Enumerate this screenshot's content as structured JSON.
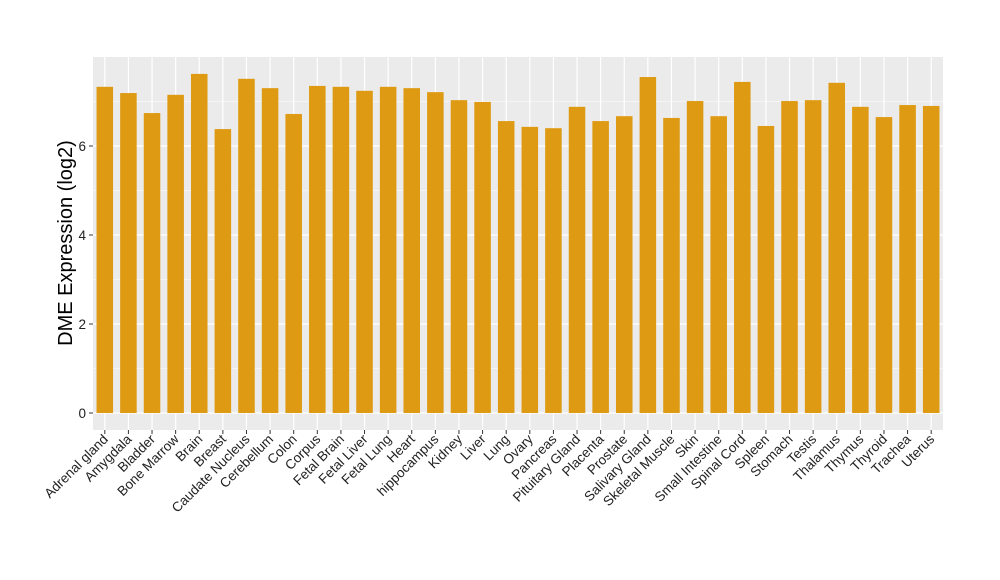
{
  "chart_data": {
    "type": "bar",
    "title": "",
    "xlabel": "",
    "ylabel": "DME Expression (log2)",
    "ylim": [
      -0.4,
      8.0
    ],
    "yticks": [
      0,
      2,
      4,
      6
    ],
    "grid": true,
    "bar_color": "#DE9A12",
    "panel_color": "#EBEBEB",
    "categories": [
      "Adrenal gland",
      "Amygdala",
      "Bladder",
      "Bone Marrow",
      "Brain",
      "Breast",
      "Caudate Nucleus",
      "Cerebellum",
      "Colon",
      "Corpus",
      "Fetal Brain",
      "Fetal Liver",
      "Fetal Lung",
      "Heart",
      "hippocampus",
      "Kidney",
      "Liver",
      "Lung",
      "Ovary",
      "Pancreas",
      "Pituitary Gland",
      "Placenta",
      "Prostate",
      "Salivary Gland",
      "Skeletal Muscle",
      "Skin",
      "Small Intestine",
      "Spinal Cord",
      "Spleen",
      "Stomach",
      "Testis",
      "Thalamus",
      "Thymus",
      "Thyroid",
      "Trachea",
      "Uterus"
    ],
    "values": [
      7.33,
      7.19,
      6.74,
      7.15,
      7.62,
      6.38,
      7.51,
      7.3,
      6.72,
      7.35,
      7.33,
      7.24,
      7.33,
      7.3,
      7.21,
      7.03,
      6.99,
      6.56,
      6.43,
      6.4,
      6.88,
      6.56,
      6.67,
      7.55,
      6.63,
      7.01,
      6.67,
      7.44,
      6.45,
      7.01,
      7.03,
      7.42,
      6.88,
      6.65,
      6.92,
      6.9
    ]
  }
}
